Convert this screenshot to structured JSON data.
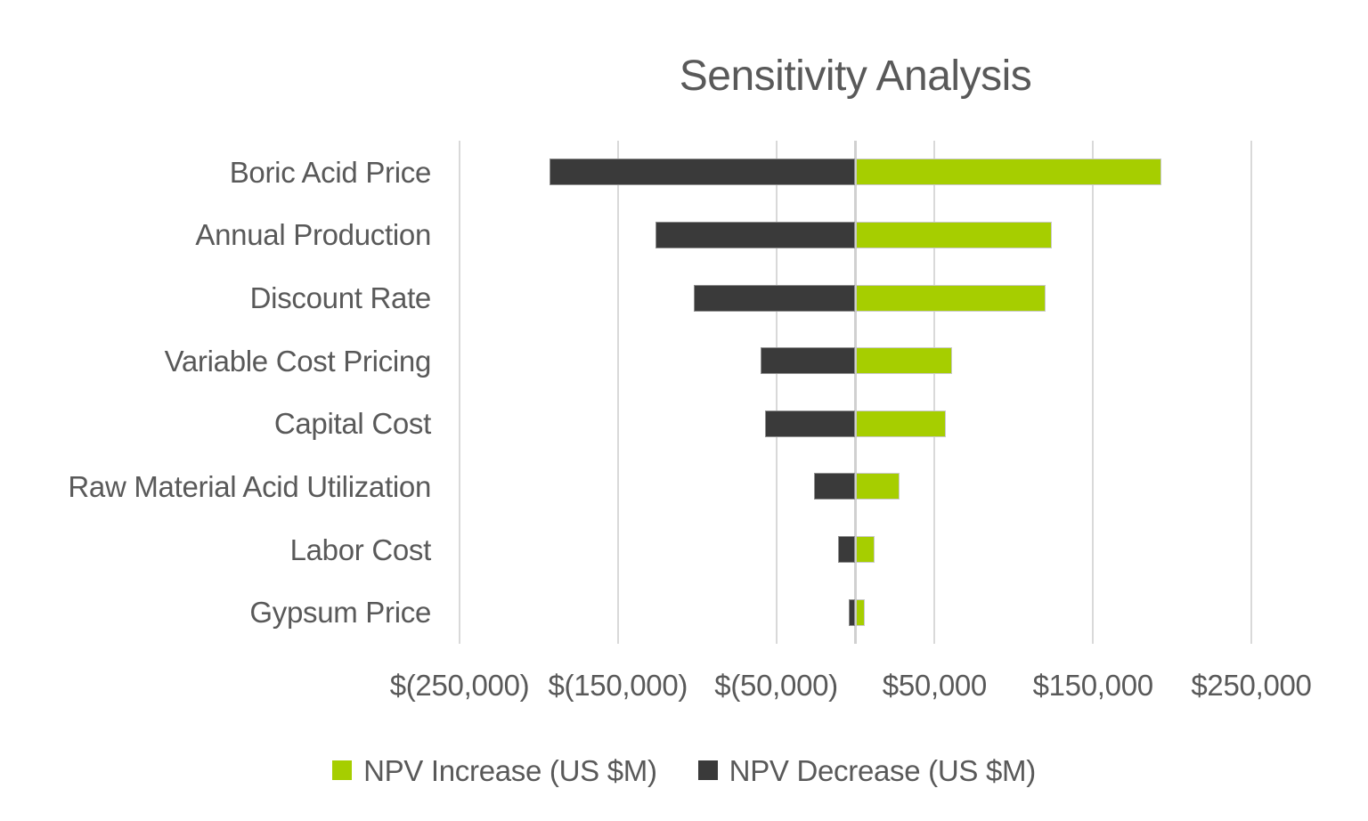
{
  "colors": {
    "background": "#FFFFFF",
    "text": "#595959",
    "gridline": "#D9D9D9",
    "zero_axis": "#D0D0D0",
    "npv_increase": "#A6CE00",
    "npv_decrease": "#3A3A3A",
    "bar_border_increase": "#C9C9C9",
    "bar_border_decrease": "#8F8F8F"
  },
  "chart_data": {
    "type": "bar",
    "orientation": "horizontal",
    "subtype": "tornado",
    "title": "Sensitivity Analysis",
    "categories": [
      "Boric Acid Price",
      "Annual Production",
      "Discount Rate",
      "Variable Cost Pricing",
      "Capital Cost",
      "Raw Material Acid Utilization",
      "Labor Cost",
      "Gypsum Price"
    ],
    "series": [
      {
        "key": "npv-increase",
        "name": "NPV Increase (US $M)",
        "color": "#A6CE00",
        "border_color": "#C9C9C9",
        "values": [
          193000,
          124000,
          120000,
          61000,
          57000,
          28000,
          12000,
          6000
        ]
      },
      {
        "key": "npv-decrease",
        "name": "NPV Decrease (US $M)",
        "color": "#3A3A3A",
        "border_color": "#8F8F8F",
        "values": [
          -193000,
          -126000,
          -102000,
          -60000,
          -57000,
          -26000,
          -11000,
          -4000
        ]
      }
    ],
    "x_ticks": [
      {
        "value": -250000,
        "label": "$(250,000)"
      },
      {
        "value": -150000,
        "label": "$(150,000)"
      },
      {
        "value": -50000,
        "label": "$(50,000)"
      },
      {
        "value": 50000,
        "label": "$50,000"
      },
      {
        "value": 150000,
        "label": "$150,000"
      },
      {
        "value": 250000,
        "label": "$250,000"
      }
    ],
    "xlim": [
      -250000,
      250000
    ],
    "grid": true,
    "legend_position": "bottom"
  }
}
